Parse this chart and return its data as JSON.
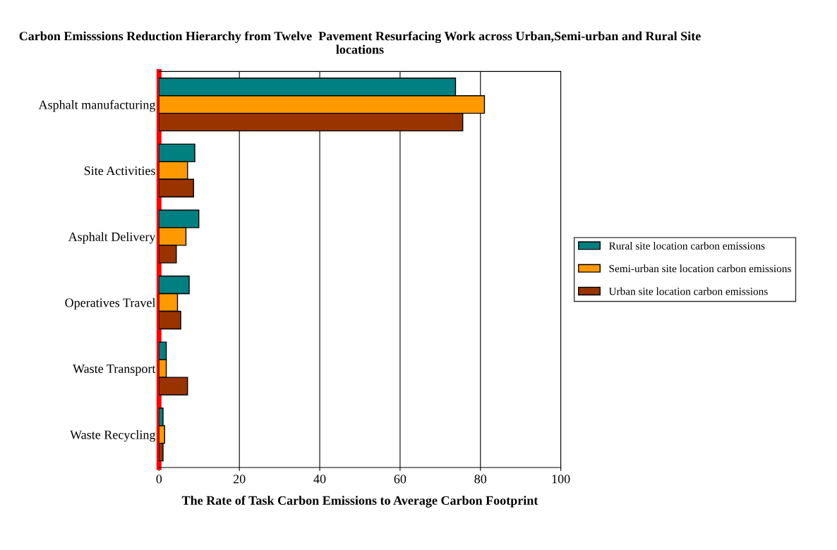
{
  "chart_data": {
    "type": "bar",
    "orientation": "horizontal",
    "title": "Carbon Emisssions Reduction Hierarchy from Twelve  Pavement Resurfacing Work across Urban,Semi-urban and Rural Site locations",
    "xlabel": "The Rate of Task Carbon Emissions to Average Carbon Footprint",
    "categories": [
      "Asphalt manufacturing",
      "Site Activities",
      "Asphalt Delivery",
      "Operatives Travel",
      "Waste Transport",
      "Waste Recycling"
    ],
    "series": [
      {
        "name": "Rural site location carbon emissions",
        "color": "#008080",
        "values": [
          73.8,
          8.9,
          9.9,
          7.5,
          1.8,
          1.0
        ]
      },
      {
        "name": "Semi-urban site location carbon emissions",
        "color": "#ff9900",
        "values": [
          81,
          7.1,
          6.7,
          4.6,
          1.8,
          1.4
        ]
      },
      {
        "name": "Urban site location carbon emissions",
        "color": "#993300",
        "values": [
          75.6,
          8.6,
          4.3,
          5.4,
          7.1,
          1.0
        ]
      }
    ],
    "xlim": [
      0,
      100
    ],
    "xticks": [
      0,
      20,
      40,
      60,
      80,
      100
    ],
    "grid": "x",
    "legend": "right"
  }
}
